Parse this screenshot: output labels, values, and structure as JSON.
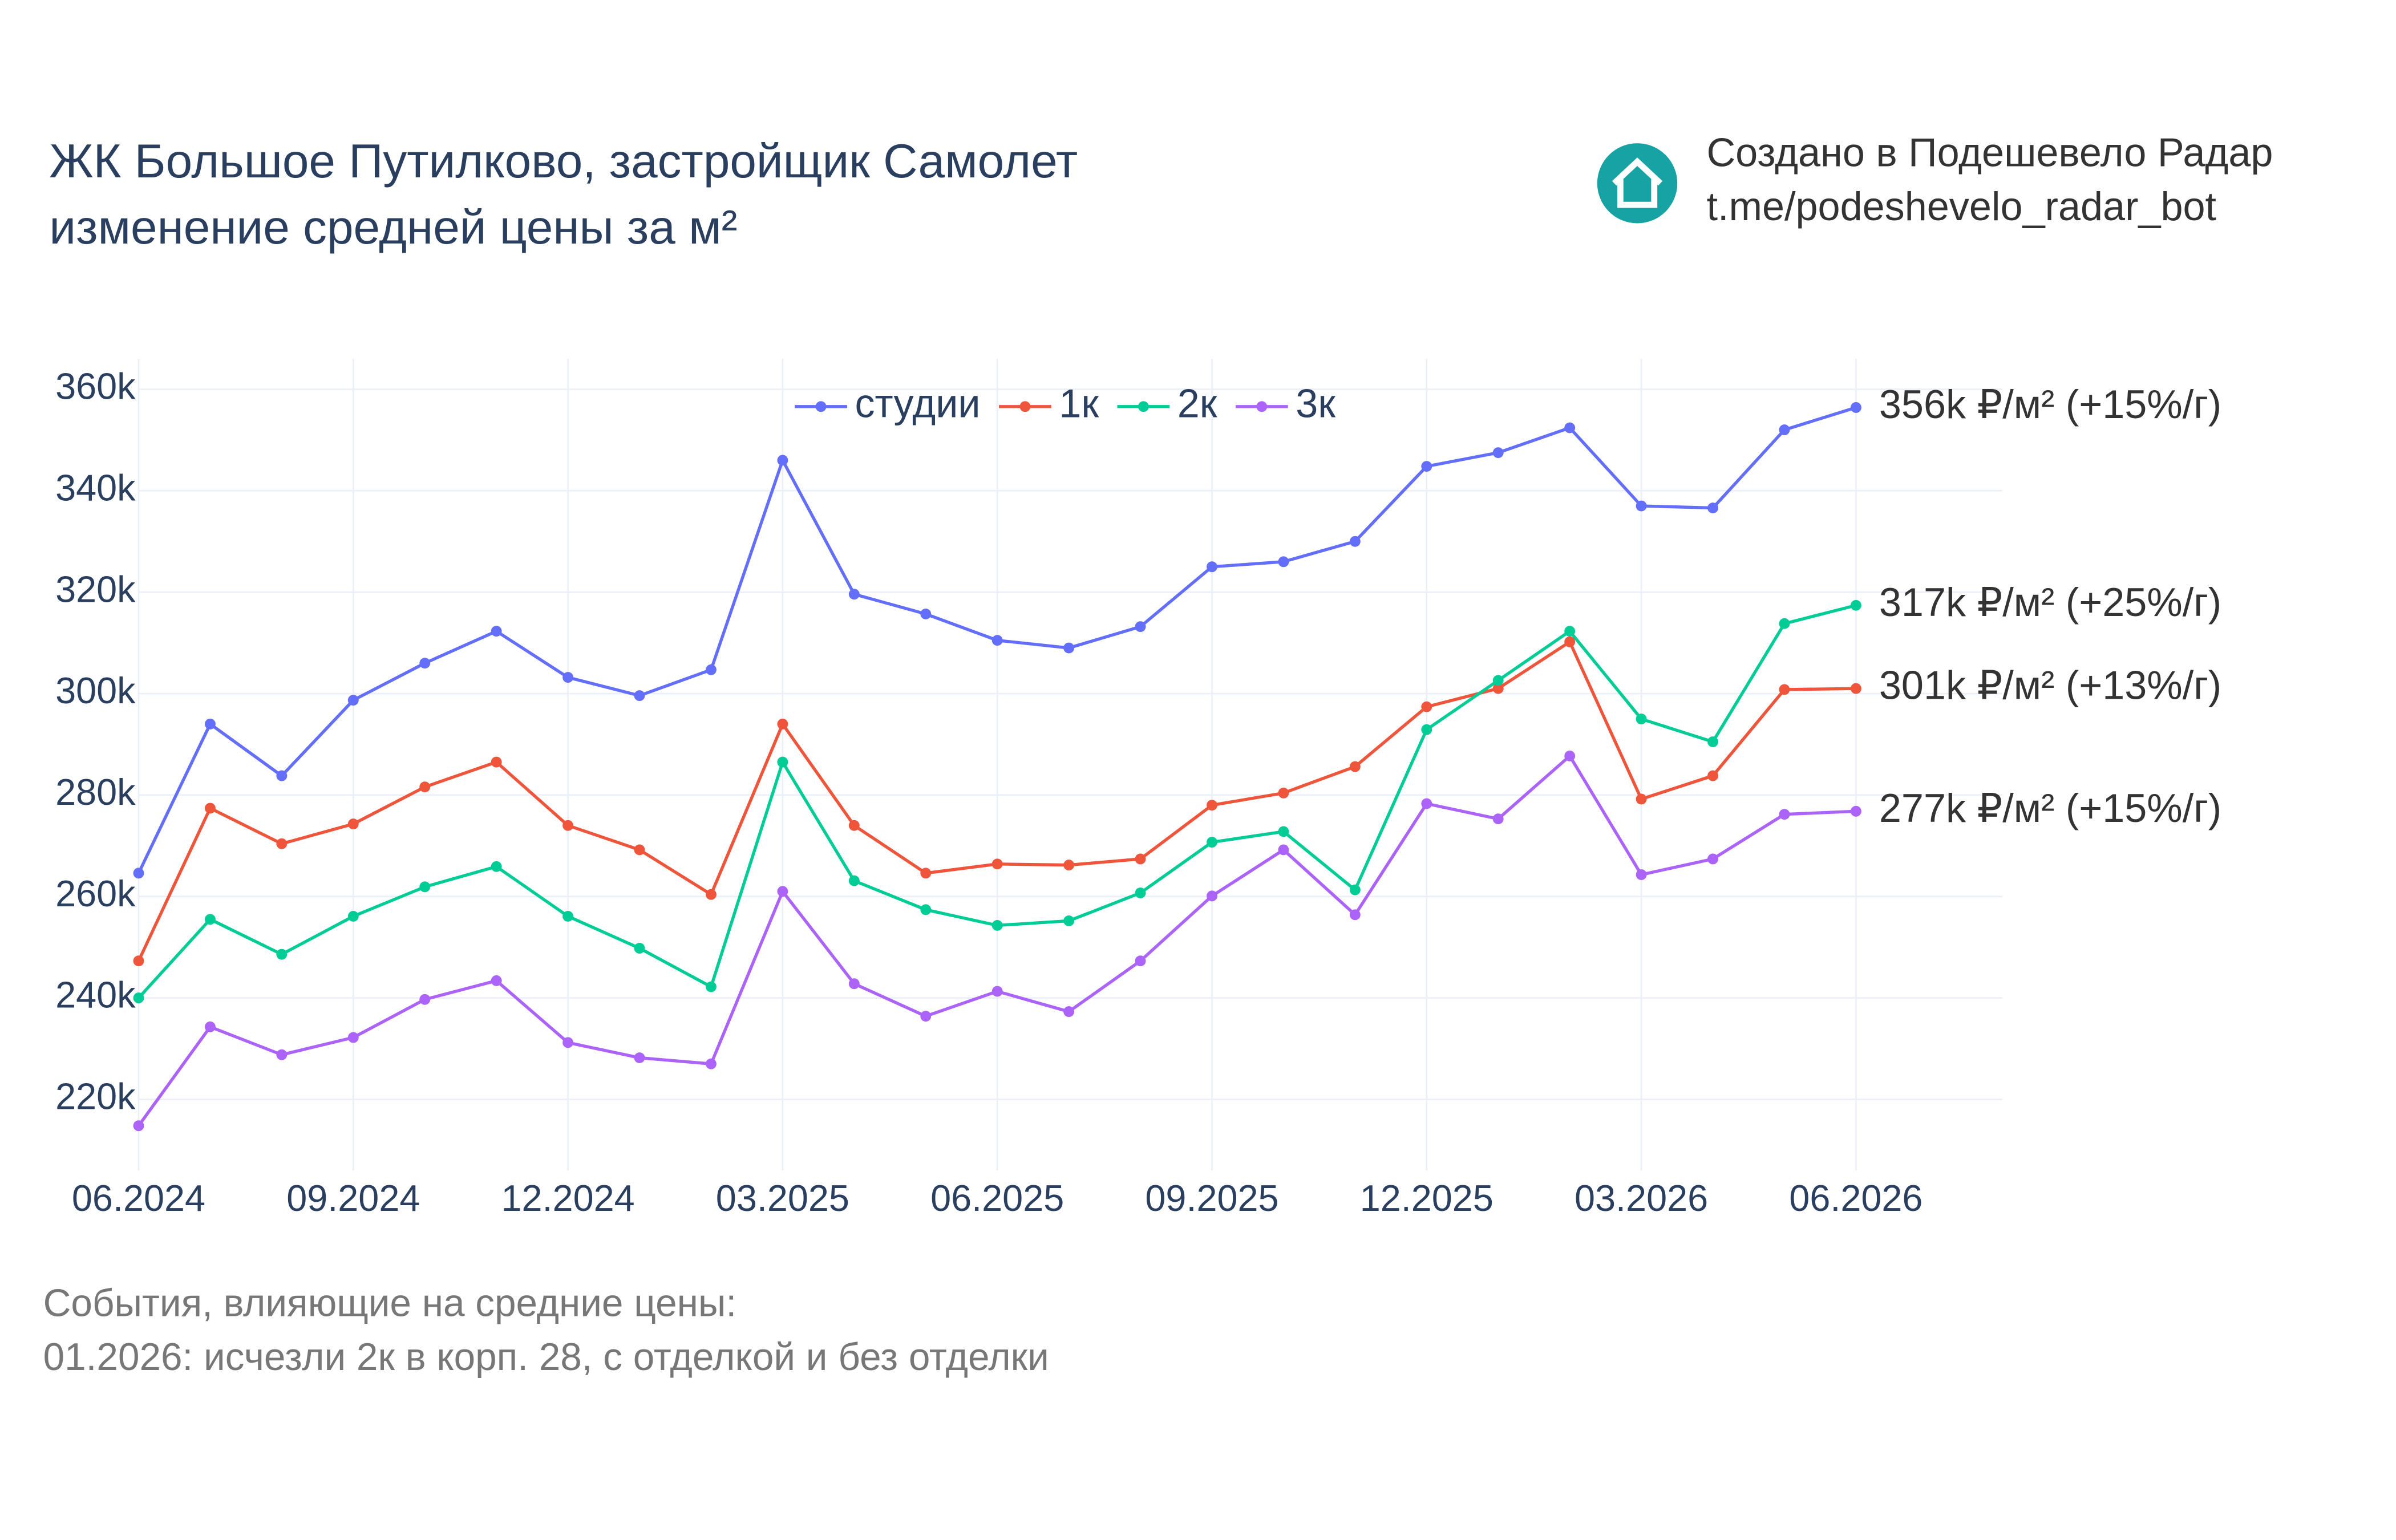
{
  "chart_data": {
    "type": "line",
    "title": [
      "ЖК Большое Путилково, застройщик Самолет",
      "изменение средней цены за м²"
    ],
    "credit": [
      "Создано в Подешевело Радар",
      "t.me/podeshevelo_radar_bot"
    ],
    "notes": [
      "События, влияющие на средние цены:",
      "01.2026: исчезли 2к в корп. 28, с отделкой и без отделки"
    ],
    "x": [
      "06.2024",
      "07.2024",
      "08.2024",
      "09.2024",
      "10.2024",
      "11.2024",
      "12.2024",
      "01.2025",
      "02.2025",
      "03.2025",
      "04.2025",
      "05.2025",
      "06.2025",
      "07.2025",
      "08.2025",
      "09.2025",
      "10.2025",
      "11.2025",
      "12.2025",
      "01.2026",
      "02.2026",
      "03.2026",
      "04.2026",
      "05.2026",
      "06.2026"
    ],
    "xticks": [
      "06.2024",
      "09.2024",
      "12.2024",
      "03.2025",
      "06.2025",
      "09.2025",
      "12.2025",
      "03.2026",
      "06.2026"
    ],
    "ylim": [
      206000,
      366000
    ],
    "yticks": [
      {
        "value": 220000,
        "label": "220k"
      },
      {
        "value": 240000,
        "label": "240k"
      },
      {
        "value": 260000,
        "label": "260k"
      },
      {
        "value": 280000,
        "label": "280k"
      },
      {
        "value": 300000,
        "label": "300k"
      },
      {
        "value": 320000,
        "label": "320k"
      },
      {
        "value": 340000,
        "label": "340k"
      },
      {
        "value": 360000,
        "label": "360k"
      }
    ],
    "grid": true,
    "legend": "top",
    "series": [
      {
        "name": "студии",
        "color": "#636efa",
        "end_label": "356k ₽/м² (+15%/г)",
        "values": [
          264600,
          294000,
          283800,
          298700,
          306000,
          312300,
          303200,
          299600,
          304700,
          346000,
          319600,
          315700,
          310500,
          309000,
          313200,
          325000,
          326000,
          330000,
          344800,
          347500,
          352400,
          337000,
          336600,
          352000,
          356400
        ]
      },
      {
        "name": "1к",
        "color": "#ef553b",
        "end_label": "301k ₽/м² (+13%/г)",
        "values": [
          247300,
          277400,
          270400,
          274300,
          281600,
          286500,
          274000,
          269200,
          260400,
          294000,
          274000,
          264600,
          266400,
          266200,
          267400,
          278000,
          280400,
          285600,
          297400,
          301000,
          310200,
          279200,
          283800,
          300800,
          301000
        ]
      },
      {
        "name": "2к",
        "color": "#00cc96",
        "end_label": "317k ₽/м² (+25%/г)",
        "values": [
          240000,
          255500,
          248600,
          256100,
          261900,
          265900,
          256100,
          249800,
          242200,
          286500,
          263100,
          257400,
          254300,
          255200,
          260700,
          270700,
          272800,
          261300,
          292900,
          302600,
          312300,
          295000,
          290500,
          313800,
          317400
        ]
      },
      {
        "name": "3к",
        "color": "#ab63fa",
        "end_label": "277k ₽/м² (+15%/г)",
        "values": [
          214800,
          234300,
          228800,
          232200,
          239700,
          243400,
          231200,
          228200,
          227000,
          261000,
          242800,
          236400,
          241300,
          237300,
          247300,
          260100,
          269200,
          256400,
          278300,
          275300,
          287700,
          264300,
          267400,
          276200,
          276800
        ]
      }
    ]
  }
}
